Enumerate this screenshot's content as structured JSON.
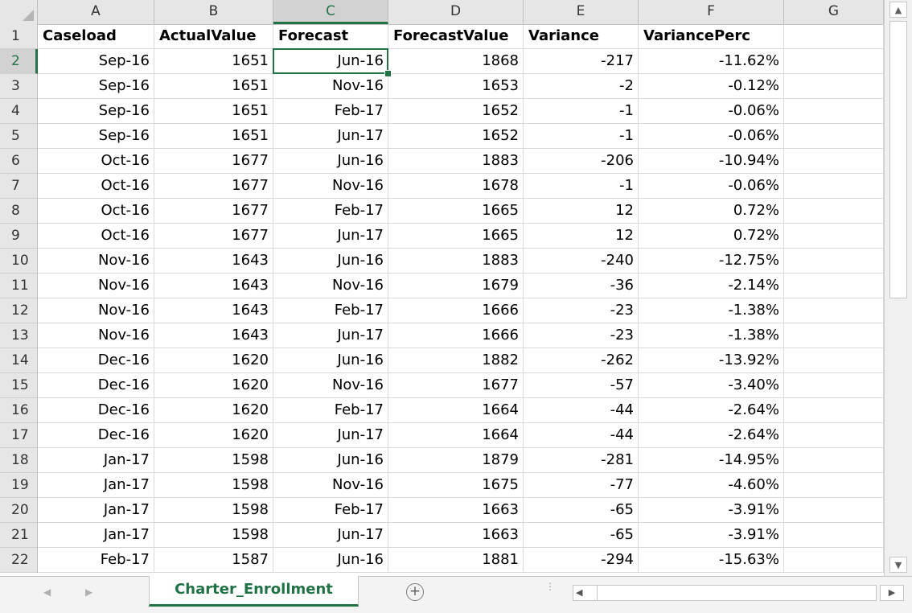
{
  "sheet": {
    "columns": [
      "A",
      "B",
      "C",
      "D",
      "E",
      "F",
      "G"
    ],
    "selected_column": "C",
    "selected_row": "2",
    "headers": [
      "Caseload",
      "ActualValue",
      "Forecast",
      "ForecastValue",
      "Variance",
      "VariancePerc"
    ],
    "rows": [
      {
        "num": "2",
        "cells": [
          "Sep-16",
          "1651",
          "Jun-16",
          "1868",
          "-217",
          "-11.62%"
        ]
      },
      {
        "num": "3",
        "cells": [
          "Sep-16",
          "1651",
          "Nov-16",
          "1653",
          "-2",
          "-0.12%"
        ]
      },
      {
        "num": "4",
        "cells": [
          "Sep-16",
          "1651",
          "Feb-17",
          "1652",
          "-1",
          "-0.06%"
        ]
      },
      {
        "num": "5",
        "cells": [
          "Sep-16",
          "1651",
          "Jun-17",
          "1652",
          "-1",
          "-0.06%"
        ]
      },
      {
        "num": "6",
        "cells": [
          "Oct-16",
          "1677",
          "Jun-16",
          "1883",
          "-206",
          "-10.94%"
        ]
      },
      {
        "num": "7",
        "cells": [
          "Oct-16",
          "1677",
          "Nov-16",
          "1678",
          "-1",
          "-0.06%"
        ]
      },
      {
        "num": "8",
        "cells": [
          "Oct-16",
          "1677",
          "Feb-17",
          "1665",
          "12",
          "0.72%"
        ]
      },
      {
        "num": "9",
        "cells": [
          "Oct-16",
          "1677",
          "Jun-17",
          "1665",
          "12",
          "0.72%"
        ]
      },
      {
        "num": "10",
        "cells": [
          "Nov-16",
          "1643",
          "Jun-16",
          "1883",
          "-240",
          "-12.75%"
        ]
      },
      {
        "num": "11",
        "cells": [
          "Nov-16",
          "1643",
          "Nov-16",
          "1679",
          "-36",
          "-2.14%"
        ]
      },
      {
        "num": "12",
        "cells": [
          "Nov-16",
          "1643",
          "Feb-17",
          "1666",
          "-23",
          "-1.38%"
        ]
      },
      {
        "num": "13",
        "cells": [
          "Nov-16",
          "1643",
          "Jun-17",
          "1666",
          "-23",
          "-1.38%"
        ]
      },
      {
        "num": "14",
        "cells": [
          "Dec-16",
          "1620",
          "Jun-16",
          "1882",
          "-262",
          "-13.92%"
        ]
      },
      {
        "num": "15",
        "cells": [
          "Dec-16",
          "1620",
          "Nov-16",
          "1677",
          "-57",
          "-3.40%"
        ]
      },
      {
        "num": "16",
        "cells": [
          "Dec-16",
          "1620",
          "Feb-17",
          "1664",
          "-44",
          "-2.64%"
        ]
      },
      {
        "num": "17",
        "cells": [
          "Dec-16",
          "1620",
          "Jun-17",
          "1664",
          "-44",
          "-2.64%"
        ]
      },
      {
        "num": "18",
        "cells": [
          "Jan-17",
          "1598",
          "Jun-16",
          "1879",
          "-281",
          "-14.95%"
        ]
      },
      {
        "num": "19",
        "cells": [
          "Jan-17",
          "1598",
          "Nov-16",
          "1675",
          "-77",
          "-4.60%"
        ]
      },
      {
        "num": "20",
        "cells": [
          "Jan-17",
          "1598",
          "Feb-17",
          "1663",
          "-65",
          "-3.91%"
        ]
      },
      {
        "num": "21",
        "cells": [
          "Jan-17",
          "1598",
          "Jun-17",
          "1663",
          "-65",
          "-3.91%"
        ]
      },
      {
        "num": "22",
        "cells": [
          "Feb-17",
          "1587",
          "Jun-16",
          "1881",
          "-294",
          "-15.63%"
        ]
      }
    ]
  },
  "sheetbar": {
    "active_tab": "Charter_Enrollment",
    "add_icon": "plus-circle-icon",
    "nav_prev_icon": "◀",
    "nav_next_icon": "▶",
    "add_symbol": "+",
    "dots_symbol": "⋮",
    "hscroll_left_symbol": "◀",
    "hscroll_right_symbol": "▶"
  },
  "scrollbar": {
    "up_symbol": "▲",
    "down_symbol": "▼"
  },
  "colors": {
    "accent": "#217346",
    "header_bg": "#e6e6e6",
    "grid_line": "#d9d9d9"
  }
}
